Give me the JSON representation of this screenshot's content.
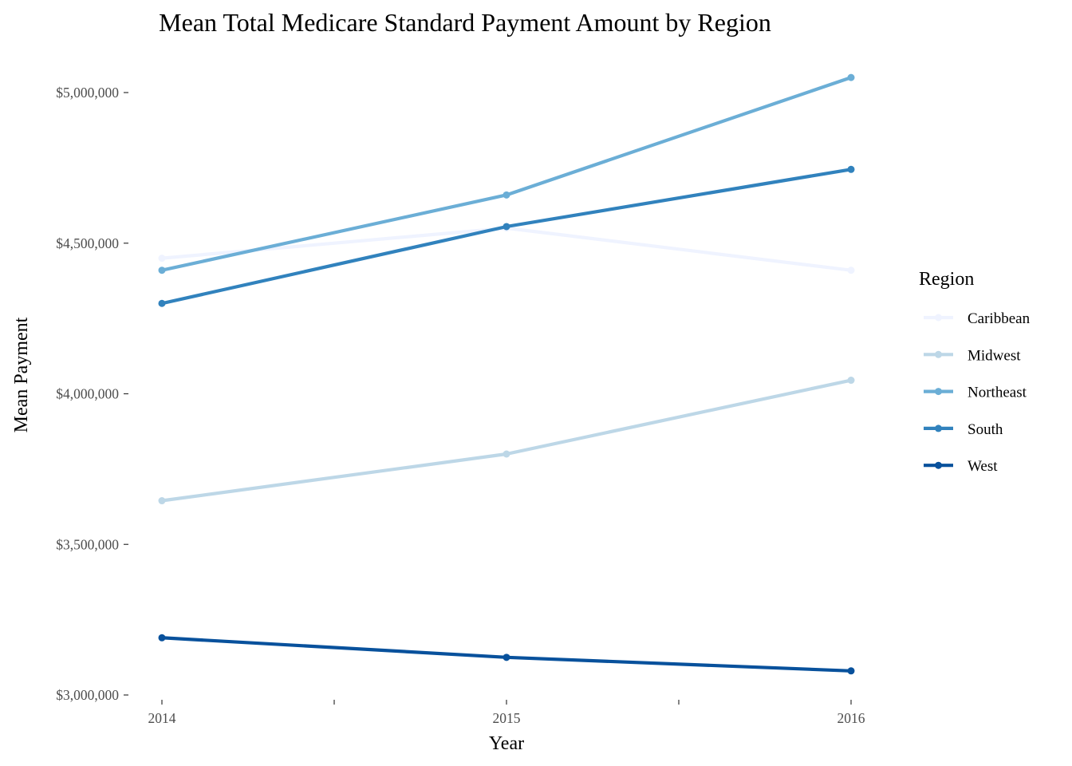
{
  "chart_data": {
    "type": "line",
    "title": "Mean Total Medicare Standard Payment Amount by Region",
    "xlabel": "Year",
    "ylabel": "Mean Payment",
    "x": [
      2014,
      2015,
      2016
    ],
    "x_tick_labels": [
      "2014",
      "2015",
      "2016"
    ],
    "xlim": [
      2014,
      2016
    ],
    "ylim": [
      3000000,
      5000000
    ],
    "y_ticks": [
      3000000,
      3500000,
      4000000,
      4500000,
      5000000
    ],
    "y_tick_labels": [
      "$3,000,000",
      "$3,500,000",
      "$4,000,000",
      "$4,500,000",
      "$5,000,000"
    ],
    "grid": false,
    "legend_title": "Region",
    "legend_position": "right",
    "series": [
      {
        "name": "Caribbean",
        "color": "#eff3ff",
        "values": [
          4450000,
          4550000,
          4410000
        ]
      },
      {
        "name": "Midwest",
        "color": "#bdd7e7",
        "values": [
          3645000,
          3800000,
          4045000
        ]
      },
      {
        "name": "Northeast",
        "color": "#6baed6",
        "values": [
          4410000,
          4660000,
          5050000
        ]
      },
      {
        "name": "South",
        "color": "#3182bd",
        "values": [
          4300000,
          4555000,
          4745000
        ]
      },
      {
        "name": "West",
        "color": "#08519c",
        "values": [
          3190000,
          3125000,
          3080000
        ]
      }
    ]
  }
}
